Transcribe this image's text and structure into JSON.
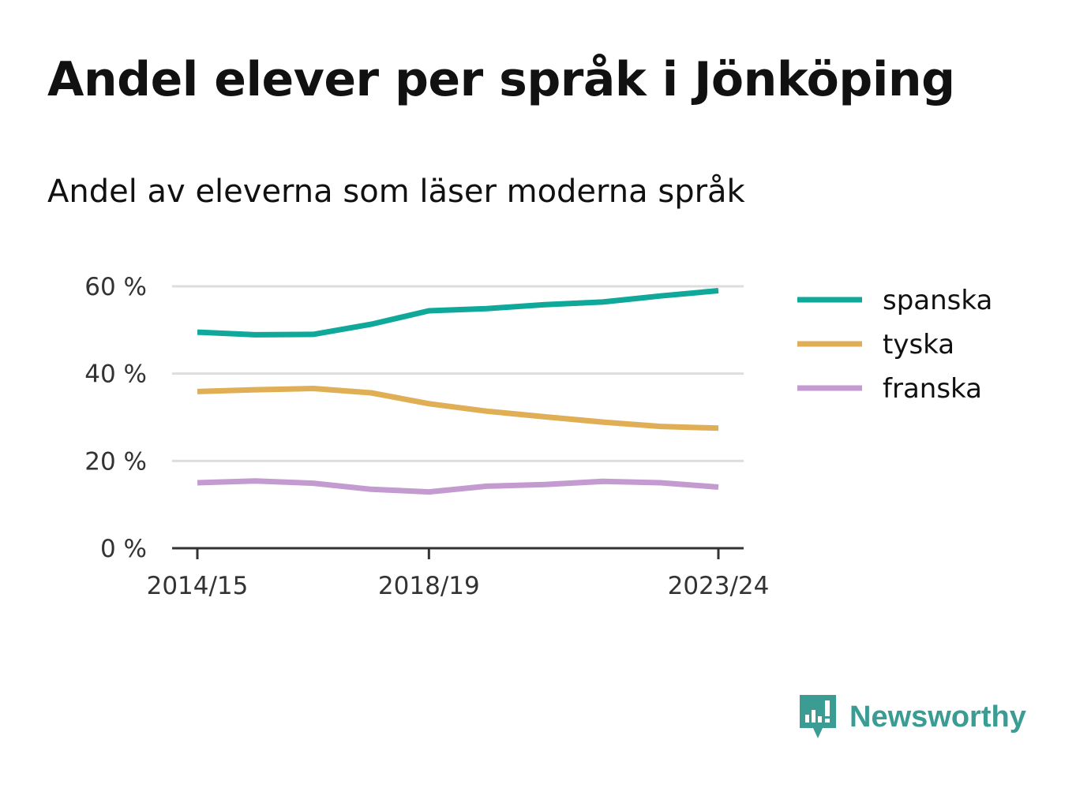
{
  "title": "Andel elever per språk i Jönköping",
  "subtitle": "Andel av eleverna som läser moderna språk",
  "brand": {
    "name": "Newsworthy",
    "icon": "newsworthy-logo-icon",
    "color": "#3a9c93"
  },
  "chart_data": {
    "type": "line",
    "x": [
      "2014/15",
      "2015/16",
      "2016/17",
      "2017/18",
      "2018/19",
      "2019/20",
      "2020/21",
      "2021/22",
      "2022/23",
      "2023/24"
    ],
    "x_tick_labels": [
      "2014/15",
      "2018/19",
      "2023/24"
    ],
    "y_ticks": [
      0,
      20,
      40,
      60
    ],
    "y_tick_labels": [
      "0 %",
      "20 %",
      "40 %",
      "60 %"
    ],
    "ylim": [
      0,
      60
    ],
    "grid": true,
    "legend_position": "right",
    "series": [
      {
        "name": "spanska",
        "color": "#0fa89a",
        "values": [
          49.5,
          48.9,
          49.0,
          51.3,
          54.4,
          54.9,
          55.8,
          56.4,
          57.8,
          59.0
        ]
      },
      {
        "name": "tyska",
        "color": "#dfae55",
        "values": [
          35.9,
          36.3,
          36.6,
          35.6,
          33.1,
          31.4,
          30.1,
          28.9,
          27.9,
          27.5
        ]
      },
      {
        "name": "franska",
        "color": "#c49bd0",
        "values": [
          15.0,
          15.4,
          14.9,
          13.5,
          12.9,
          14.2,
          14.6,
          15.3,
          15.0,
          14.0
        ]
      }
    ]
  }
}
